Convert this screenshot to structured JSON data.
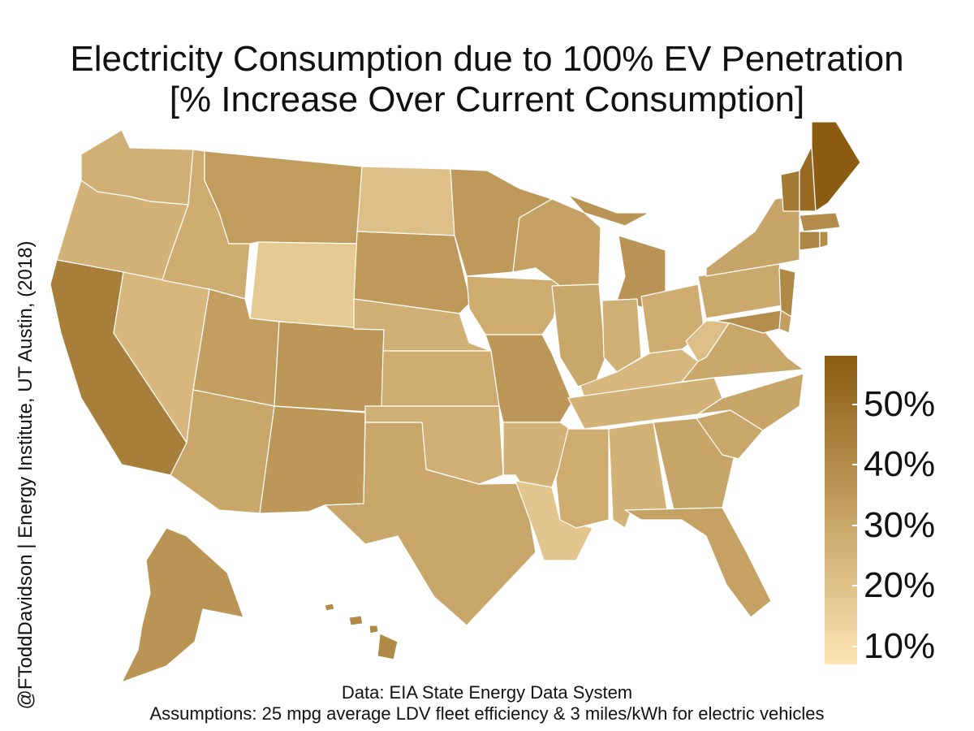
{
  "title": {
    "line1": "Electricity Consumption due to 100% EV Penetration",
    "line2": "[% Increase Over Current Consumption]"
  },
  "side_credit": "@FToddDavidson | Energy Institute, UT Austin, (2018)",
  "footer": {
    "line1": "Data: EIA State Energy Data System",
    "line2": "Assumptions: 25 mpg average LDV fleet efficiency & 3 miles/kWh for electric vehicles"
  },
  "legend": {
    "min": 7,
    "max": 58,
    "color_low": "#fde5b4",
    "color_high": "#8a5b10",
    "ticks": [
      {
        "value": 10,
        "label": "10%"
      },
      {
        "value": 20,
        "label": "20%"
      },
      {
        "value": 30,
        "label": "30%"
      },
      {
        "value": 40,
        "label": "40%"
      },
      {
        "value": 50,
        "label": "50%"
      }
    ]
  },
  "chart_data": {
    "type": "choropleth",
    "unit": "%",
    "states": [
      {
        "id": "WA",
        "value": 27
      },
      {
        "id": "OR",
        "value": 26
      },
      {
        "id": "CA",
        "value": 45
      },
      {
        "id": "NV",
        "value": 24
      },
      {
        "id": "ID",
        "value": 28
      },
      {
        "id": "MT",
        "value": 34
      },
      {
        "id": "WY",
        "value": 17
      },
      {
        "id": "UT",
        "value": 33
      },
      {
        "id": "CO",
        "value": 36
      },
      {
        "id": "AZ",
        "value": 30
      },
      {
        "id": "NM",
        "value": 36
      },
      {
        "id": "ND",
        "value": 21
      },
      {
        "id": "SD",
        "value": 35
      },
      {
        "id": "NE",
        "value": 27
      },
      {
        "id": "KS",
        "value": 28
      },
      {
        "id": "OK",
        "value": 27
      },
      {
        "id": "TX",
        "value": 30
      },
      {
        "id": "MN",
        "value": 35
      },
      {
        "id": "IA",
        "value": 28
      },
      {
        "id": "MO",
        "value": 36
      },
      {
        "id": "AR",
        "value": 26
      },
      {
        "id": "LA",
        "value": 19
      },
      {
        "id": "WI",
        "value": 32
      },
      {
        "id": "IL",
        "value": 30
      },
      {
        "id": "MI",
        "value": 37
      },
      {
        "id": "IN",
        "value": 27
      },
      {
        "id": "OH",
        "value": 28
      },
      {
        "id": "KY",
        "value": 24
      },
      {
        "id": "TN",
        "value": 26
      },
      {
        "id": "MS",
        "value": 28
      },
      {
        "id": "AL",
        "value": 26
      },
      {
        "id": "GA",
        "value": 31
      },
      {
        "id": "FL",
        "value": 32
      },
      {
        "id": "SC",
        "value": 30
      },
      {
        "id": "NC",
        "value": 31
      },
      {
        "id": "VA",
        "value": 30
      },
      {
        "id": "WV",
        "value": 21
      },
      {
        "id": "PA",
        "value": 29
      },
      {
        "id": "NY",
        "value": 31
      },
      {
        "id": "NJ",
        "value": 41
      },
      {
        "id": "DE",
        "value": 33
      },
      {
        "id": "MD",
        "value": 39
      },
      {
        "id": "VT",
        "value": 47
      },
      {
        "id": "NH",
        "value": 52
      },
      {
        "id": "ME",
        "value": 58
      },
      {
        "id": "MA",
        "value": 40
      },
      {
        "id": "CT",
        "value": 42
      },
      {
        "id": "RI",
        "value": 40
      },
      {
        "id": "AK",
        "value": 37
      },
      {
        "id": "HI",
        "value": 41
      }
    ]
  }
}
